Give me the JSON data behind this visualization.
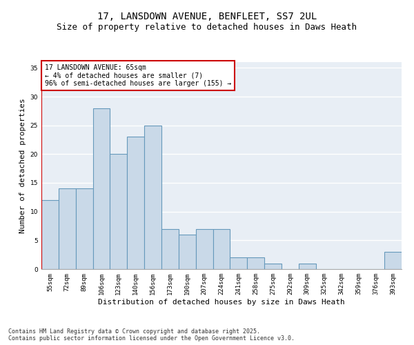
{
  "title1": "17, LANSDOWN AVENUE, BENFLEET, SS7 2UL",
  "title2": "Size of property relative to detached houses in Daws Heath",
  "xlabel": "Distribution of detached houses by size in Daws Heath",
  "ylabel": "Number of detached properties",
  "categories": [
    "55sqm",
    "72sqm",
    "89sqm",
    "106sqm",
    "123sqm",
    "140sqm",
    "156sqm",
    "173sqm",
    "190sqm",
    "207sqm",
    "224sqm",
    "241sqm",
    "258sqm",
    "275sqm",
    "292sqm",
    "309sqm",
    "325sqm",
    "342sqm",
    "359sqm",
    "376sqm",
    "393sqm"
  ],
  "values": [
    12,
    14,
    14,
    28,
    20,
    23,
    25,
    7,
    6,
    7,
    7,
    2,
    2,
    1,
    0,
    1,
    0,
    0,
    0,
    0,
    3
  ],
  "bar_color": "#c9d9e8",
  "bar_edge_color": "#6699bb",
  "annotation_line_color": "#cc0000",
  "annotation_box_edge": "#cc0000",
  "annotation_text": "17 LANSDOWN AVENUE: 65sqm\n← 4% of detached houses are smaller (7)\n96% of semi-detached houses are larger (155) →",
  "ylim": [
    0,
    36
  ],
  "yticks": [
    0,
    5,
    10,
    15,
    20,
    25,
    30,
    35
  ],
  "background_color": "#e8eef5",
  "grid_color": "#ffffff",
  "footer": "Contains HM Land Registry data © Crown copyright and database right 2025.\nContains public sector information licensed under the Open Government Licence v3.0.",
  "title_fontsize": 10,
  "subtitle_fontsize": 9,
  "xlabel_fontsize": 8,
  "ylabel_fontsize": 8,
  "tick_fontsize": 6.5,
  "annotation_fontsize": 7,
  "footer_fontsize": 6
}
